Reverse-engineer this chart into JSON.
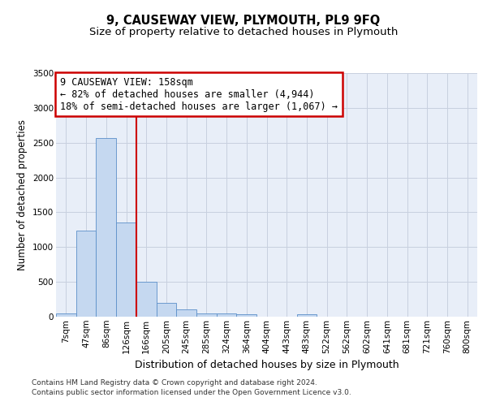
{
  "title": "9, CAUSEWAY VIEW, PLYMOUTH, PL9 9FQ",
  "subtitle": "Size of property relative to detached houses in Plymouth",
  "xlabel": "Distribution of detached houses by size in Plymouth",
  "ylabel": "Number of detached properties",
  "categories": [
    "7sqm",
    "47sqm",
    "86sqm",
    "126sqm",
    "166sqm",
    "205sqm",
    "245sqm",
    "285sqm",
    "324sqm",
    "364sqm",
    "404sqm",
    "443sqm",
    "483sqm",
    "522sqm",
    "562sqm",
    "602sqm",
    "641sqm",
    "681sqm",
    "721sqm",
    "760sqm",
    "800sqm"
  ],
  "values": [
    50,
    1240,
    2570,
    1350,
    500,
    195,
    110,
    50,
    45,
    30,
    0,
    0,
    30,
    0,
    0,
    0,
    0,
    0,
    0,
    0,
    0
  ],
  "bar_color": "#c5d8f0",
  "bar_edge_color": "#5b8fc9",
  "ylim_max": 3500,
  "yticks": [
    0,
    500,
    1000,
    1500,
    2000,
    2500,
    3000,
    3500
  ],
  "red_line_x": 3.5,
  "annotation_line1": "9 CAUSEWAY VIEW: 158sqm",
  "annotation_line2": "← 82% of detached houses are smaller (4,944)",
  "annotation_line3": "18% of semi-detached houses are larger (1,067) →",
  "red_line_color": "#cc0000",
  "annotation_edge_color": "#cc0000",
  "bg_color": "#e8eef8",
  "grid_color": "#c8d0df",
  "footer_line1": "Contains HM Land Registry data © Crown copyright and database right 2024.",
  "footer_line2": "Contains public sector information licensed under the Open Government Licence v3.0.",
  "title_fontsize": 10.5,
  "subtitle_fontsize": 9.5,
  "ylabel_fontsize": 8.5,
  "xlabel_fontsize": 9,
  "tick_fontsize": 7.5,
  "annot_fontsize": 8.5,
  "footer_fontsize": 6.5
}
